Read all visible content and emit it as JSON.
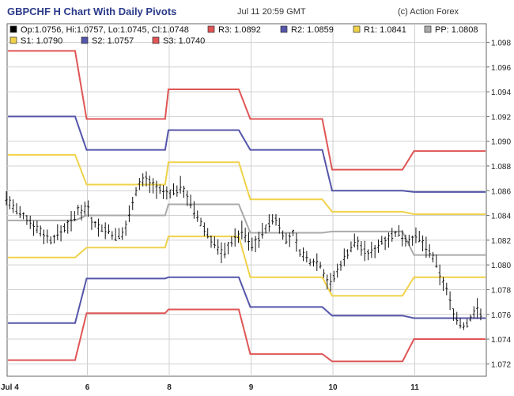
{
  "header": {
    "title": "GBPCHF H Chart With Daily Pivots",
    "timestamp": "Jul 11 20:59 GMT",
    "credit": "(c) Action Forex"
  },
  "legend": [
    {
      "text": "Op:1.0756, Hi:1.0757, Lo:1.0745, Cl:1.0748",
      "color": "#000000"
    },
    {
      "text": "R3: 1.0892",
      "color": "#e05555"
    },
    {
      "text": "R2: 1.0859",
      "color": "#5555aa"
    },
    {
      "text": "R1: 1.0841",
      "color": "#f0d24a"
    },
    {
      "text": "PP: 1.0808",
      "color": "#aaaaaa"
    },
    {
      "text": "S1: 1.0790",
      "color": "#f0d24a"
    },
    {
      "text": "S2: 1.0757",
      "color": "#5555aa"
    },
    {
      "text": "S3: 1.0740",
      "color": "#e05555"
    }
  ],
  "chart_data": {
    "type": "line",
    "title": "GBPCHF H Chart With Daily Pivots",
    "ylim": [
      1.071,
      1.0995
    ],
    "y_ticks": [
      "1.072",
      "1.074",
      "1.076",
      "1.078",
      "1.080",
      "1.082",
      "1.084",
      "1.086",
      "1.088",
      "1.090",
      "1.092",
      "1.094",
      "1.096",
      "1.098"
    ],
    "x_ticks": [
      {
        "label": "Jul 4",
        "x": 0
      },
      {
        "label": "6",
        "x": 1
      },
      {
        "label": "8",
        "x": 2
      },
      {
        "label": "9",
        "x": 3
      },
      {
        "label": "10",
        "x": 4
      },
      {
        "label": "11",
        "x": 5
      }
    ],
    "x_range": [
      0,
      5.85
    ],
    "grid": true,
    "pivot_days": [
      0,
      1,
      2,
      3,
      4,
      5
    ],
    "series": [
      {
        "name": "R3",
        "color": "#e05555",
        "values": [
          1.0973,
          1.0918,
          1.0942,
          1.0918,
          1.0877,
          1.0892
        ]
      },
      {
        "name": "R2",
        "color": "#5555aa",
        "values": [
          1.092,
          1.0893,
          1.0909,
          1.0893,
          1.086,
          1.0859
        ]
      },
      {
        "name": "R1",
        "color": "#f0d24a",
        "values": [
          1.0889,
          1.0865,
          1.0883,
          1.0853,
          1.0843,
          1.0841
        ]
      },
      {
        "name": "PP",
        "color": "#aaaaaa",
        "values": [
          1.0836,
          1.084,
          1.0849,
          1.0826,
          1.0827,
          1.0808
        ]
      },
      {
        "name": "S1",
        "color": "#f0d24a",
        "values": [
          1.0806,
          1.0814,
          1.0823,
          1.079,
          1.0775,
          1.079
        ]
      },
      {
        "name": "S2",
        "color": "#5555aa",
        "values": [
          1.0753,
          1.0789,
          1.079,
          1.0766,
          1.0759,
          1.0757
        ]
      },
      {
        "name": "S3",
        "color": "#e05555",
        "values": [
          1.0723,
          1.0761,
          1.0764,
          1.0728,
          1.0722,
          1.074
        ]
      }
    ],
    "price_path": [
      [
        0.0,
        1.0855
      ],
      [
        0.08,
        1.0848
      ],
      [
        0.15,
        1.0842
      ],
      [
        0.25,
        1.0838
      ],
      [
        0.35,
        1.0832
      ],
      [
        0.45,
        1.0826
      ],
      [
        0.55,
        1.082
      ],
      [
        0.65,
        1.0825
      ],
      [
        0.75,
        1.0832
      ],
      [
        0.85,
        1.0838
      ],
      [
        0.9,
        1.0848
      ],
      [
        0.95,
        1.0842
      ],
      [
        1.0,
        1.085
      ],
      [
        1.05,
        1.0836
      ],
      [
        1.15,
        1.083
      ],
      [
        1.25,
        1.0828
      ],
      [
        1.35,
        1.0822
      ],
      [
        1.45,
        1.0826
      ],
      [
        1.5,
        1.0838
      ],
      [
        1.55,
        1.0852
      ],
      [
        1.62,
        1.0864
      ],
      [
        1.7,
        1.087
      ],
      [
        1.78,
        1.0866
      ],
      [
        1.85,
        1.0862
      ],
      [
        1.92,
        1.0858
      ],
      [
        2.0,
        1.0858
      ],
      [
        2.08,
        1.086
      ],
      [
        2.15,
        1.0864
      ],
      [
        2.22,
        1.0856
      ],
      [
        2.28,
        1.0846
      ],
      [
        2.35,
        1.0838
      ],
      [
        2.42,
        1.083
      ],
      [
        2.5,
        1.0822
      ],
      [
        2.58,
        1.0815
      ],
      [
        2.66,
        1.0808
      ],
      [
        2.74,
        1.0818
      ],
      [
        2.82,
        1.0822
      ],
      [
        2.9,
        1.0828
      ],
      [
        3.0,
        1.0815
      ],
      [
        3.1,
        1.0822
      ],
      [
        3.2,
        1.0832
      ],
      [
        3.3,
        1.0838
      ],
      [
        3.36,
        1.083
      ],
      [
        3.44,
        1.0818
      ],
      [
        3.52,
        1.0826
      ],
      [
        3.58,
        1.0812
      ],
      [
        3.66,
        1.0806
      ],
      [
        3.74,
        1.0802
      ],
      [
        3.82,
        1.0804
      ],
      [
        3.9,
        1.0792
      ],
      [
        3.96,
        1.0784
      ],
      [
        4.05,
        1.0794
      ],
      [
        4.12,
        1.0804
      ],
      [
        4.2,
        1.0812
      ],
      [
        4.28,
        1.082
      ],
      [
        4.35,
        1.0814
      ],
      [
        4.42,
        1.0808
      ],
      [
        4.5,
        1.0812
      ],
      [
        4.58,
        1.0818
      ],
      [
        4.66,
        1.0822
      ],
      [
        4.74,
        1.0824
      ],
      [
        4.82,
        1.0826
      ],
      [
        4.9,
        1.082
      ],
      [
        5.0,
        1.0822
      ],
      [
        5.08,
        1.082
      ],
      [
        5.16,
        1.0812
      ],
      [
        5.24,
        1.0804
      ],
      [
        5.32,
        1.079
      ],
      [
        5.4,
        1.0778
      ],
      [
        5.46,
        1.0764
      ],
      [
        5.52,
        1.0756
      ],
      [
        5.58,
        1.075
      ],
      [
        5.64,
        1.0752
      ],
      [
        5.7,
        1.076
      ],
      [
        5.76,
        1.0766
      ],
      [
        5.82,
        1.0756
      ],
      [
        5.85,
        1.0748
      ]
    ]
  }
}
